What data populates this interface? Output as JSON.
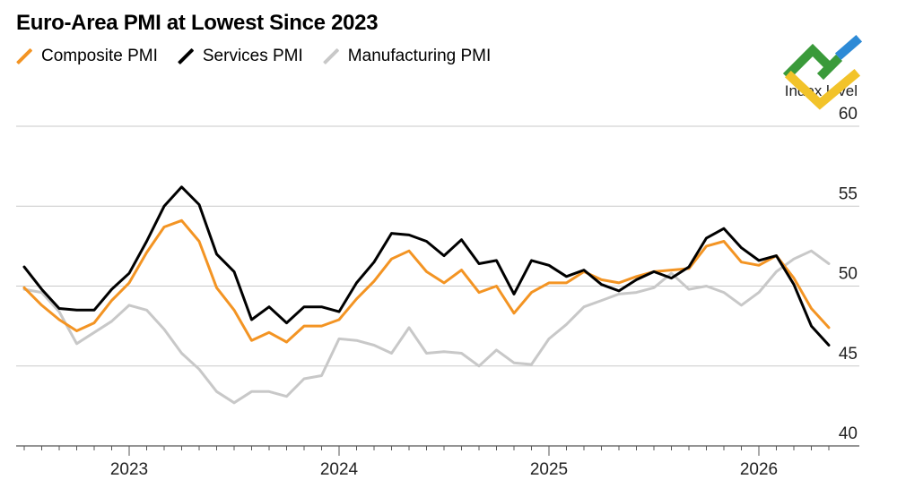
{
  "title": "Euro-Area PMI at Lowest Since 2023",
  "legend": [
    {
      "label": "Composite PMI",
      "color": "#f39423"
    },
    {
      "label": "Services PMI",
      "color": "#000000"
    },
    {
      "label": "Manufacturing PMI",
      "color": "#c8c8c8"
    }
  ],
  "logo": {
    "icon": "brand-logo-icon",
    "colors": [
      "#3a9a3a",
      "#2d8ad6",
      "#f2c32a"
    ]
  },
  "chart_data": {
    "type": "line",
    "ylabel": "Index level",
    "ylim": [
      40,
      60
    ],
    "yticks": [
      40,
      45,
      50,
      55,
      60
    ],
    "xticks": [
      "2023",
      "2024",
      "2025",
      "2026"
    ],
    "x_start": "2022-07",
    "x_end": "2026-05",
    "grid": true,
    "series": [
      {
        "name": "Composite PMI",
        "color": "#f39423",
        "values": [
          49.9,
          48.8,
          47.9,
          47.2,
          47.7,
          49.1,
          50.2,
          52.1,
          53.7,
          54.1,
          52.8,
          49.9,
          48.5,
          46.6,
          47.1,
          46.5,
          47.5,
          47.5,
          47.9,
          49.2,
          50.3,
          51.7,
          52.2,
          50.9,
          50.2,
          51.0,
          49.6,
          50.0,
          48.3,
          49.6,
          50.2,
          50.2,
          50.9,
          50.4,
          50.2,
          50.6,
          50.9,
          51.0,
          51.1,
          52.5,
          52.8,
          51.5,
          51.3,
          51.9,
          50.5,
          48.6,
          47.4
        ]
      },
      {
        "name": "Services PMI",
        "color": "#000000",
        "values": [
          51.2,
          49.8,
          48.6,
          48.5,
          48.5,
          49.8,
          50.8,
          52.8,
          55.0,
          56.2,
          55.1,
          52.0,
          50.9,
          47.9,
          48.7,
          47.7,
          48.7,
          48.7,
          48.4,
          50.2,
          51.5,
          53.3,
          53.2,
          52.8,
          51.9,
          52.9,
          51.4,
          51.6,
          49.5,
          51.6,
          51.3,
          50.6,
          51.0,
          50.1,
          49.7,
          50.4,
          50.9,
          50.5,
          51.2,
          53.0,
          53.6,
          52.4,
          51.6,
          51.9,
          50.1,
          47.5,
          46.3
        ]
      },
      {
        "name": "Manufacturing PMI",
        "color": "#c8c8c8",
        "values": [
          49.8,
          49.6,
          48.4,
          46.4,
          47.1,
          47.8,
          48.8,
          48.5,
          47.3,
          45.8,
          44.8,
          43.4,
          42.7,
          43.4,
          43.4,
          43.1,
          44.2,
          44.4,
          46.7,
          46.6,
          46.3,
          45.8,
          47.4,
          45.8,
          45.9,
          45.8,
          45.0,
          46.0,
          45.2,
          45.1,
          46.7,
          47.6,
          48.7,
          49.1,
          49.5,
          49.6,
          49.9,
          50.8,
          49.8,
          50.0,
          49.6,
          48.8,
          49.6,
          50.9,
          51.7,
          52.2,
          51.4
        ]
      }
    ]
  }
}
